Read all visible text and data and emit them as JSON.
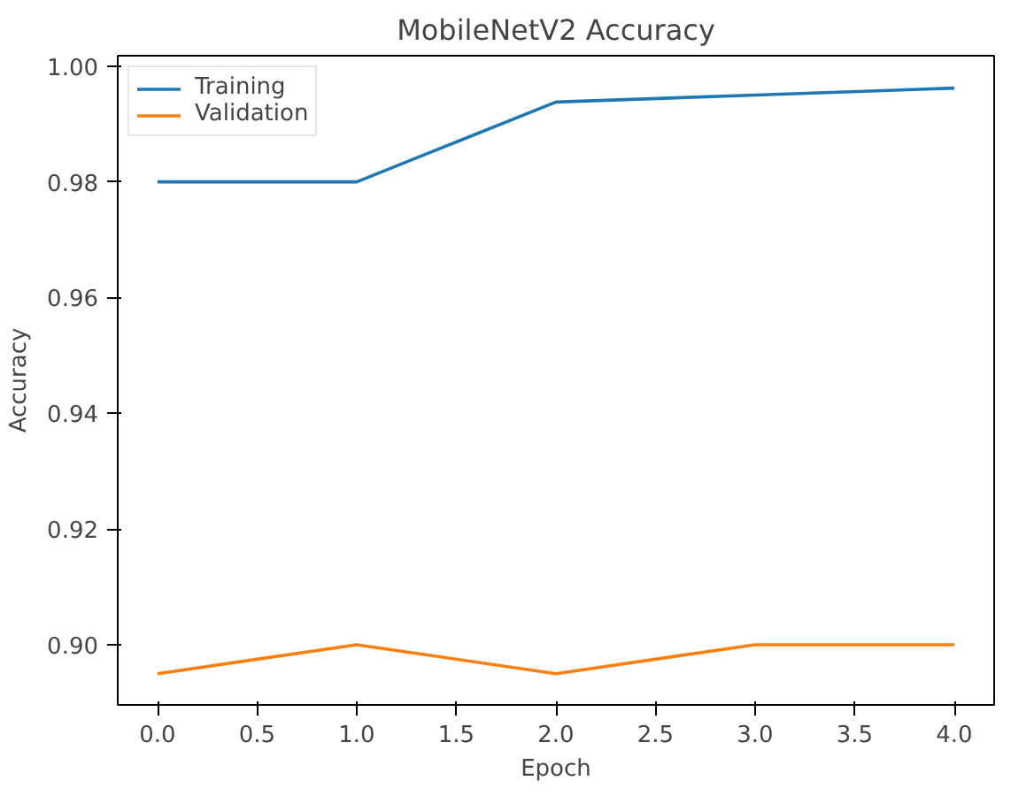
{
  "chart_data": {
    "type": "line",
    "title": "MobileNetV2 Accuracy",
    "xlabel": "Epoch",
    "ylabel": "Accuracy",
    "x": [
      0,
      1,
      2,
      3,
      4
    ],
    "series": [
      {
        "name": "Training",
        "color": "#1f77b4",
        "values": [
          0.98,
          0.98,
          0.9938,
          0.995,
          0.9962
        ]
      },
      {
        "name": "Validation",
        "color": "#ff7f0e",
        "values": [
          0.895,
          0.9,
          0.895,
          0.9,
          0.9
        ]
      }
    ],
    "xlim": [
      -0.2,
      4.2
    ],
    "xticks": [
      {
        "value": 0,
        "label": "0.0"
      },
      0.5,
      {
        "value": 1,
        "label": "1.0"
      },
      1.5,
      {
        "value": 2,
        "label": "2.0"
      },
      2.5,
      {
        "value": 3,
        "label": "3.0"
      },
      3.5,
      {
        "value": 4,
        "label": "4.0"
      }
    ],
    "ylim": [
      0.8896,
      1.0018
    ],
    "yticks": [
      {
        "value": 0.9,
        "label": "0.90"
      },
      0.92,
      0.94,
      0.96,
      0.98,
      {
        "value": 1,
        "label": "1.00"
      }
    ],
    "grid": false,
    "legend": "top left",
    "marker": "none",
    "line_style": "solid"
  }
}
